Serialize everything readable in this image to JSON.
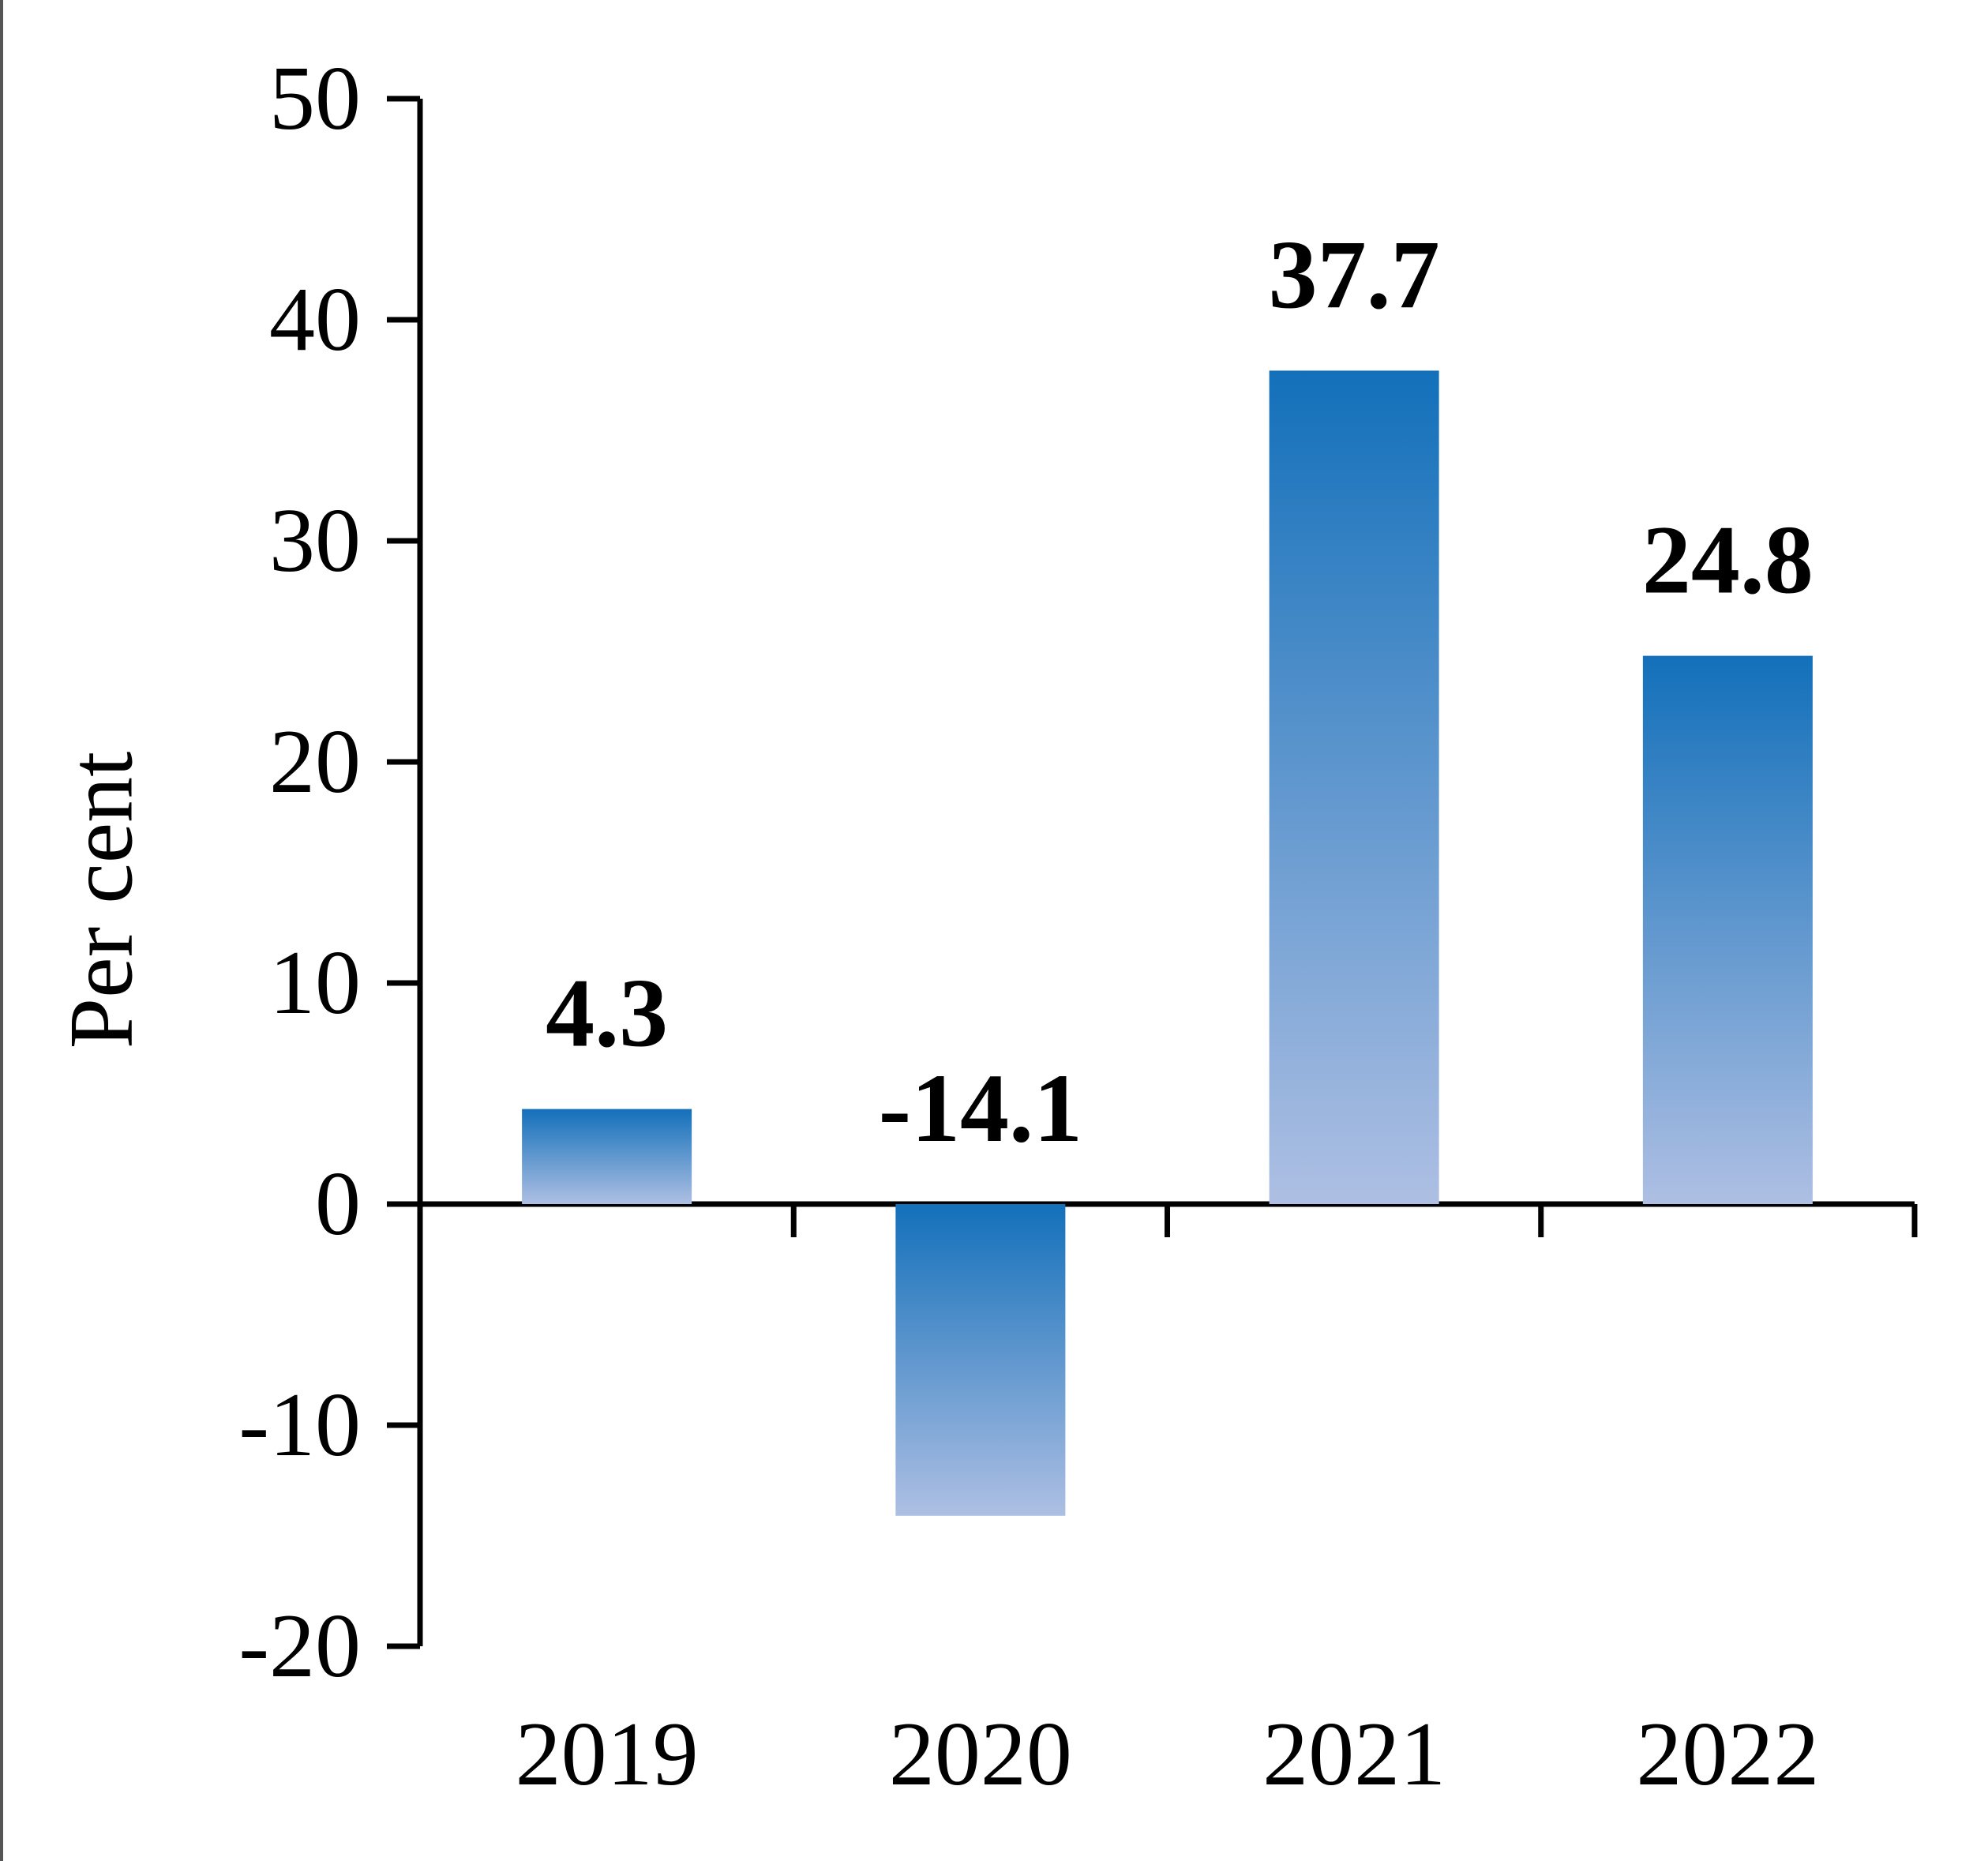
{
  "chart_data": {
    "type": "bar",
    "categories": [
      "2019",
      "2020",
      "2021",
      "2022"
    ],
    "values": [
      4.3,
      -14.1,
      37.7,
      24.8
    ],
    "data_labels": [
      "4.3",
      "-14.1",
      "37.7",
      "24.8"
    ],
    "title": "",
    "xlabel": "",
    "ylabel": "Per cent",
    "ylim": [
      -20,
      50
    ],
    "yticks": [
      50,
      40,
      30,
      20,
      10,
      0,
      -10,
      -20
    ],
    "ytick_labels": [
      "50",
      "40",
      "30",
      "20",
      "10",
      "0",
      "-10",
      "-20"
    ],
    "grid": false,
    "legend": "none",
    "colors": {
      "bar_top": "#1370BA",
      "bar_bottom": "#AEBFE3",
      "axis": "#000000"
    }
  }
}
